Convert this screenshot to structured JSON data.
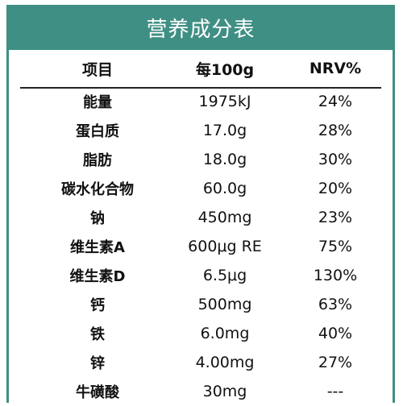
{
  "title": "营养成分表",
  "table": {
    "headers": [
      "项目",
      "每100g",
      "NRV%"
    ],
    "rows": [
      {
        "name": "能量",
        "amount": "1975kJ",
        "nrv": "24%"
      },
      {
        "name": "蛋白质",
        "amount": "17.0g",
        "nrv": "28%"
      },
      {
        "name": "脂肪",
        "amount": "18.0g",
        "nrv": "30%"
      },
      {
        "name": "碳水化合物",
        "amount": "60.0g",
        "nrv": "20%"
      },
      {
        "name": "钠",
        "amount": "450mg",
        "nrv": "23%"
      },
      {
        "name": "维生素A",
        "amount": "600μg RE",
        "nrv": "75%"
      },
      {
        "name": "维生素D",
        "amount": "6.5μg",
        "nrv": "130%"
      },
      {
        "name": "钙",
        "amount": "500mg",
        "nrv": "63%"
      },
      {
        "name": "铁",
        "amount": "6.0mg",
        "nrv": "40%"
      },
      {
        "name": "锌",
        "amount": "4.00mg",
        "nrv": "27%"
      },
      {
        "name": "牛磺酸",
        "amount": "30mg",
        "nrv": "---"
      }
    ]
  },
  "colors": {
    "accent": "#3f8f84"
  }
}
